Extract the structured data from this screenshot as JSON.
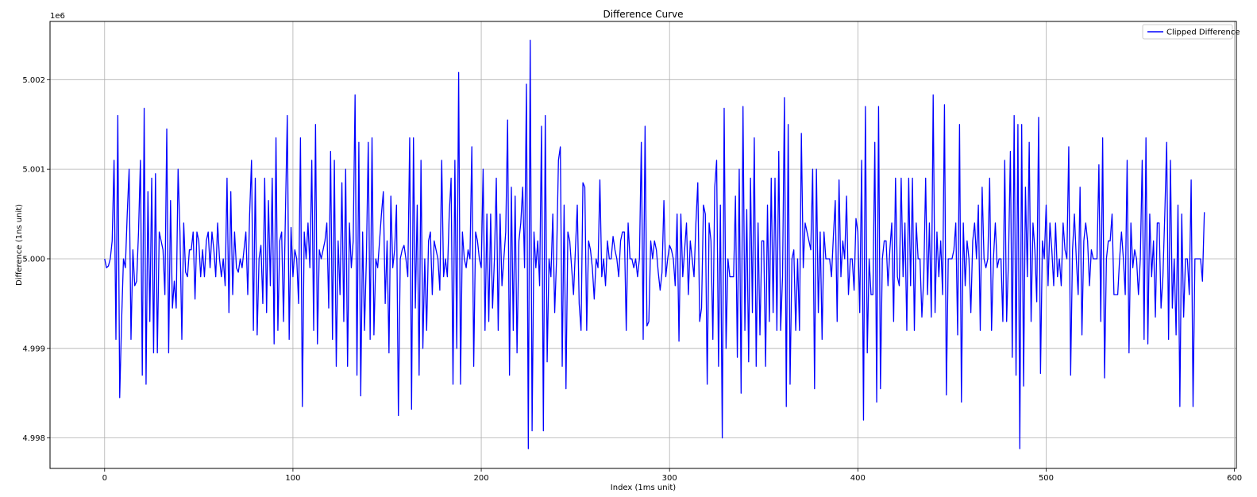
{
  "chart_data": {
    "type": "line",
    "title": "Difference Curve",
    "xlabel": "Index (1ms unit)",
    "ylabel": "Difference (1ns unit)",
    "y_offset_label": "1e6",
    "xlim": [
      -29,
      601
    ],
    "ylim": [
      4.99766,
      5.00265
    ],
    "x_ticks": [
      0,
      100,
      200,
      300,
      400,
      500,
      600
    ],
    "y_ticks": [
      4.998,
      4.999,
      5.0,
      5.001,
      5.002
    ],
    "y_tick_labels": [
      "4.998",
      "4.999",
      "5.000",
      "5.001",
      "5.002"
    ],
    "grid": true,
    "legend_position": "top-right",
    "line_color": "#0000ff",
    "series": [
      {
        "name": "Clipped Difference",
        "color": "#0000ff",
        "x_start": 0,
        "x_step": 1,
        "values": [
          5.0,
          4.9999,
          4.99992,
          5.0,
          5.0002,
          5.0011,
          4.9991,
          5.0016,
          4.99845,
          4.9993,
          5.0,
          4.9999,
          5.0005,
          5.001,
          4.9991,
          5.0001,
          4.9997,
          4.99975,
          5.0003,
          5.0011,
          4.9987,
          5.00168,
          4.9986,
          5.00075,
          4.9993,
          5.0009,
          4.99895,
          5.00095,
          4.99895,
          5.0003,
          5.0002,
          5.0001,
          4.9996,
          5.00145,
          4.99895,
          5.00065,
          4.99945,
          4.99975,
          4.99945,
          5.001,
          5.0003,
          4.9991,
          5.0004,
          4.99985,
          4.9998,
          5.0001,
          5.0001,
          5.0003,
          4.99955,
          5.0003,
          5.0002,
          4.9998,
          5.0001,
          4.9998,
          5.0002,
          5.0003,
          4.9999,
          5.0003,
          5.0001,
          4.9998,
          5.0004,
          5.0,
          4.9998,
          5.0,
          4.9997,
          5.0009,
          4.9994,
          5.00075,
          4.9996,
          5.0003,
          4.9999,
          4.99985,
          5.0,
          4.9999,
          5.0001,
          5.0003,
          4.9996,
          5.0005,
          5.0011,
          4.9992,
          5.0009,
          4.99915,
          5.0,
          5.00015,
          4.9995,
          5.0009,
          4.9994,
          5.00065,
          4.9997,
          5.0009,
          4.99905,
          5.00135,
          4.9992,
          5.0002,
          5.0003,
          4.9993,
          5.0005,
          5.0016,
          4.9991,
          5.00035,
          4.9998,
          5.0001,
          5.0,
          4.9995,
          5.00135,
          4.99835,
          5.0003,
          5.0,
          5.0004,
          4.9999,
          5.0011,
          4.9992,
          5.0015,
          4.99905,
          5.0001,
          5.0,
          5.0001,
          5.0002,
          5.0004,
          4.99945,
          5.0012,
          4.9991,
          5.0011,
          4.9988,
          5.0002,
          4.9996,
          5.00085,
          4.9993,
          5.001,
          4.9988,
          5.0004,
          4.9999,
          5.0002,
          5.00183,
          4.9987,
          5.0013,
          4.99847,
          5.0003,
          4.9992,
          5.0,
          5.0013,
          4.9991,
          5.00135,
          4.99915,
          5.0,
          4.9999,
          5.0002,
          5.0005,
          5.00075,
          4.9995,
          5.0002,
          4.99895,
          5.0007,
          4.9999,
          5.0001,
          5.0006,
          4.99825,
          5.0,
          5.0001,
          5.00015,
          5.0,
          4.9998,
          5.00135,
          4.99832,
          5.00135,
          4.99945,
          5.0006,
          4.9987,
          5.0011,
          4.999,
          5.0,
          4.9992,
          5.0002,
          5.0003,
          4.9996,
          5.0002,
          5.0001,
          5.0,
          4.99965,
          5.0011,
          4.9998,
          5.0,
          4.9998,
          5.0005,
          5.0009,
          4.9986,
          5.0011,
          4.999,
          5.00208,
          4.9986,
          5.0003,
          5.0,
          4.9999,
          5.0001,
          5.0,
          5.00125,
          4.9988,
          5.0003,
          5.0002,
          5.0,
          4.9999,
          5.001,
          4.9992,
          5.0005,
          4.9993,
          5.0005,
          4.99945,
          5.0,
          5.0009,
          4.9992,
          5.0005,
          4.9997,
          5.0,
          5.0003,
          5.00155,
          4.9987,
          5.0008,
          4.9992,
          5.0007,
          4.99895,
          5.0002,
          5.0004,
          5.0008,
          4.9999,
          5.00195,
          4.99788,
          5.00244,
          4.99808,
          5.0003,
          4.9999,
          5.0002,
          4.9997,
          5.00148,
          4.99808,
          5.0016,
          4.99885,
          5.0,
          4.9998,
          5.0005,
          4.9994,
          5.0,
          5.0011,
          5.00125,
          4.9988,
          5.0006,
          4.99855,
          5.0003,
          5.0002,
          4.9999,
          4.9996,
          5.0001,
          5.0006,
          4.9995,
          4.9992,
          5.00085,
          5.0008,
          4.9992,
          5.0002,
          5.0001,
          4.9999,
          4.99955,
          5.0,
          4.9999,
          5.00088,
          4.9998,
          5.0,
          4.9997,
          5.0002,
          5.0,
          5.0,
          5.00025,
          5.0001,
          5.0,
          4.9998,
          5.0002,
          5.0003,
          5.0003,
          4.9992,
          5.0004,
          5.0,
          5.0,
          4.9999,
          5.0,
          4.9998,
          5.0,
          5.0013,
          4.9991,
          5.00148,
          4.99925,
          4.9993,
          5.0002,
          5.0,
          5.0002,
          5.0001,
          4.99985,
          4.99965,
          4.99985,
          5.00065,
          4.9998,
          5.0,
          5.00015,
          5.0001,
          5.0,
          4.9997,
          5.0005,
          4.99908,
          5.0005,
          4.9998,
          5.0001,
          5.0004,
          4.9996,
          5.0002,
          5.0,
          4.9998,
          5.0004,
          5.00085,
          4.9993,
          4.99945,
          5.0006,
          5.0005,
          4.9986,
          5.0004,
          5.0002,
          4.9991,
          5.0008,
          5.0011,
          4.9988,
          5.0006,
          4.998,
          5.00168,
          4.999,
          5.0,
          4.9998,
          4.9998,
          4.9998,
          5.0007,
          4.9989,
          5.001,
          4.9985,
          5.0017,
          4.9992,
          5.00055,
          4.99885,
          5.0009,
          4.9994,
          5.00135,
          4.9988,
          5.0004,
          4.99915,
          5.0002,
          5.0002,
          4.9988,
          5.0006,
          4.9993,
          5.0009,
          4.9994,
          5.0009,
          4.9992,
          5.0012,
          4.9992,
          4.9998,
          5.0018,
          4.99835,
          5.0015,
          4.9986,
          5.0,
          5.0001,
          4.9992,
          5.0,
          4.9992,
          5.0014,
          4.9999,
          5.0004,
          5.0003,
          5.0002,
          5.0001,
          5.001,
          4.99855,
          5.001,
          4.9994,
          5.0003,
          4.9991,
          5.0003,
          5.0,
          5.0,
          5.0,
          4.9998,
          5.00025,
          5.00065,
          4.9993,
          5.00088,
          4.9998,
          5.0002,
          5.0,
          5.0007,
          4.9996,
          5.0,
          5.0,
          4.99965,
          5.00045,
          5.0003,
          4.9994,
          5.0011,
          4.9982,
          5.0017,
          4.99895,
          5.0,
          4.9996,
          4.9996,
          5.0013,
          4.9984,
          5.0017,
          4.99855,
          5.0,
          5.0002,
          5.0002,
          4.9997,
          5.0001,
          5.0004,
          4.9993,
          5.0009,
          4.9998,
          4.9997,
          5.0009,
          4.9998,
          5.0004,
          4.9992,
          5.0009,
          4.9997,
          5.0009,
          4.9992,
          5.0004,
          5.0,
          5.0,
          4.99935,
          4.9998,
          5.0009,
          4.9996,
          5.0004,
          4.99935,
          5.00183,
          4.9994,
          5.0003,
          4.9998,
          5.0002,
          4.9996,
          5.00172,
          4.99848,
          5.0,
          5.0,
          5.0,
          5.0001,
          5.0004,
          4.99915,
          5.0015,
          4.9984,
          5.0004,
          4.9997,
          5.0002,
          5.0,
          4.9994,
          5.0002,
          5.0004,
          5.0,
          5.0006,
          4.9992,
          5.0008,
          5.0,
          4.9999,
          5.0,
          5.0009,
          4.9992,
          5.0,
          5.0004,
          4.9999,
          5.0,
          5.0,
          4.9993,
          5.0011,
          4.9993,
          5.0,
          5.0012,
          4.9989,
          5.0016,
          4.9987,
          5.0015,
          4.99788,
          5.0015,
          4.99858,
          5.0008,
          4.9998,
          5.0013,
          4.9993,
          5.0004,
          5.0001,
          4.99952,
          5.00158,
          4.99872,
          5.0002,
          5.0,
          5.0006,
          4.9997,
          5.0004,
          5.0001,
          4.9997,
          5.0004,
          4.9998,
          5.0,
          4.9997,
          5.0004,
          5.0001,
          5.0,
          5.00125,
          4.9987,
          5.0001,
          5.0005,
          5.0,
          4.9996,
          5.0008,
          4.99915,
          5.0002,
          5.0004,
          5.0002,
          4.9997,
          5.0001,
          5.0,
          5.0,
          5.0,
          5.00105,
          4.9993,
          5.00135,
          4.99867,
          5.0,
          5.0002,
          5.0002,
          5.0005,
          4.9996,
          4.9996,
          4.9996,
          5.0,
          5.0003,
          5.0,
          4.9996,
          5.0011,
          4.99895,
          5.0004,
          4.9999,
          5.0001,
          5.0,
          4.9996,
          5.0,
          5.0011,
          4.9991,
          5.00135,
          4.99905,
          5.0005,
          4.9998,
          5.0002,
          4.99935,
          5.0004,
          5.0004,
          4.99945,
          4.9998,
          5.0005,
          5.0013,
          4.9991,
          5.0011,
          4.99945,
          5.0,
          4.99915,
          5.0006,
          4.99835,
          5.0005,
          4.99935,
          5.0,
          5.0,
          4.9996,
          5.00088,
          4.99835,
          5.0,
          5.0,
          5.0,
          5.0,
          4.99975,
          5.00052
        ]
      }
    ]
  }
}
